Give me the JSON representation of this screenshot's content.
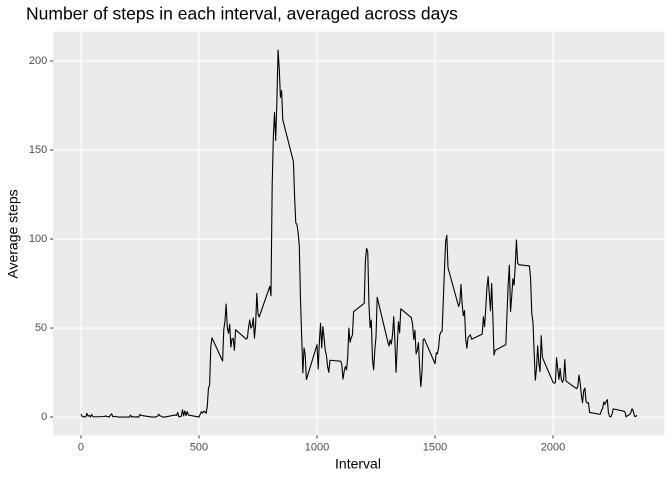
{
  "chart_data": {
    "type": "line",
    "title": "Number of steps in each interval, averaged across days",
    "x_label": "Interval",
    "y_label": "Average steps",
    "x": [
      0,
      5,
      10,
      15,
      20,
      25,
      30,
      35,
      40,
      45,
      50,
      55,
      100,
      105,
      110,
      115,
      120,
      125,
      130,
      135,
      140,
      145,
      150,
      155,
      200,
      205,
      210,
      215,
      220,
      225,
      230,
      235,
      240,
      245,
      250,
      255,
      300,
      305,
      310,
      315,
      320,
      325,
      330,
      335,
      340,
      345,
      350,
      355,
      400,
      405,
      410,
      415,
      420,
      425,
      430,
      435,
      440,
      445,
      450,
      455,
      500,
      505,
      510,
      515,
      520,
      525,
      530,
      535,
      540,
      545,
      550,
      555,
      600,
      605,
      610,
      615,
      620,
      625,
      630,
      635,
      640,
      645,
      650,
      655,
      700,
      705,
      710,
      715,
      720,
      725,
      730,
      735,
      740,
      745,
      750,
      755,
      800,
      805,
      810,
      815,
      820,
      825,
      830,
      835,
      840,
      845,
      850,
      855,
      900,
      905,
      910,
      915,
      920,
      925,
      930,
      935,
      940,
      945,
      950,
      955,
      1000,
      1005,
      1010,
      1015,
      1020,
      1025,
      1030,
      1035,
      1040,
      1045,
      1050,
      1055,
      1100,
      1105,
      1110,
      1115,
      1120,
      1125,
      1130,
      1135,
      1140,
      1145,
      1150,
      1155,
      1200,
      1205,
      1210,
      1215,
      1220,
      1225,
      1230,
      1235,
      1240,
      1245,
      1250,
      1255,
      1300,
      1305,
      1310,
      1315,
      1320,
      1325,
      1330,
      1335,
      1340,
      1345,
      1350,
      1355,
      1400,
      1405,
      1410,
      1415,
      1420,
      1425,
      1430,
      1435,
      1440,
      1445,
      1450,
      1455,
      1500,
      1505,
      1510,
      1515,
      1520,
      1525,
      1530,
      1535,
      1540,
      1545,
      1550,
      1555,
      1600,
      1605,
      1610,
      1615,
      1620,
      1625,
      1630,
      1635,
      1640,
      1645,
      1650,
      1655,
      1700,
      1705,
      1710,
      1715,
      1720,
      1725,
      1730,
      1735,
      1740,
      1745,
      1750,
      1755,
      1800,
      1805,
      1810,
      1815,
      1820,
      1825,
      1830,
      1835,
      1840,
      1845,
      1850,
      1855,
      1900,
      1905,
      1910,
      1915,
      1920,
      1925,
      1930,
      1935,
      1940,
      1945,
      1950,
      1955,
      2000,
      2005,
      2010,
      2015,
      2020,
      2025,
      2030,
      2035,
      2040,
      2045,
      2050,
      2055,
      2100,
      2105,
      2110,
      2115,
      2120,
      2125,
      2130,
      2135,
      2140,
      2145,
      2150,
      2155,
      2200,
      2205,
      2210,
      2215,
      2220,
      2225,
      2230,
      2235,
      2240,
      2245,
      2250,
      2255,
      2300,
      2305,
      2310,
      2315,
      2320,
      2325,
      2330,
      2335,
      2340,
      2345,
      2350,
      2355
    ],
    "series": [
      {
        "name": "Average steps",
        "color": "#000000",
        "values": [
          1.7,
          0.3,
          0.1,
          0.2,
          0.1,
          2.1,
          0.5,
          0.9,
          0,
          1.5,
          0.3,
          0.1,
          0.3,
          0.7,
          0.2,
          0.3,
          0,
          1.1,
          1.8,
          0.2,
          0.2,
          0.4,
          0.3,
          0,
          0,
          0,
          1.1,
          0,
          0.2,
          0.1,
          0,
          0.2,
          0,
          0,
          1.5,
          0.9,
          0,
          0,
          0,
          0,
          0.2,
          0.6,
          1.6,
          0.6,
          0.5,
          0.1,
          0,
          0,
          1.2,
          0.9,
          2.6,
          0,
          0.3,
          0.4,
          4.1,
          0.7,
          3.5,
          0.8,
          3.1,
          1.1,
          0,
          1.6,
          3,
          2.2,
          3.3,
          3,
          2.1,
          6,
          16,
          18.3,
          39.5,
          44.5,
          31.5,
          49.3,
          53.8,
          63.5,
          50,
          47.1,
          52.2,
          39.3,
          44,
          44.2,
          37.4,
          49,
          43.8,
          44.4,
          50.5,
          54.5,
          49.9,
          51,
          55.7,
          44.3,
          52.3,
          69.5,
          57.8,
          56.2,
          73.4,
          68.2,
          129.4,
          157.5,
          171.2,
          155.4,
          177.3,
          206.2,
          195.9,
          179.6,
          183.4,
          167,
          143.5,
          124,
          109.1,
          108.1,
          103.7,
          95.9,
          66.2,
          45.2,
          24.8,
          38.8,
          35,
          21.1,
          40.6,
          27,
          42.4,
          52.7,
          38.9,
          50.8,
          44.3,
          37.4,
          34.7,
          28.3,
          25.1,
          31.9,
          31.4,
          29.7,
          21.3,
          25.5,
          28.4,
          26.5,
          33.3,
          49.98,
          42,
          44.6,
          46,
          59.2,
          63.9,
          87.7,
          94.8,
          92.8,
          63.4,
          50.2,
          54.5,
          32.4,
          26.5,
          37.7,
          45.1,
          67.3,
          42.3,
          39.9,
          43.3,
          40.98,
          46.2,
          56.4,
          42.8,
          25.1,
          39.96,
          53.5,
          47.3,
          60.8,
          55.8,
          51.96,
          43.6,
          48.7,
          35.5,
          37.5,
          41.8,
          27.5,
          17.1,
          26.1,
          43.6,
          43.8,
          30,
          36.1,
          35.5,
          38.8,
          45.96,
          47.8,
          48.1,
          65.3,
          82.9,
          98.7,
          102.1,
          83.96,
          62.1,
          64.1,
          74.5,
          63.2,
          56.9,
          59.8,
          43.9,
          38.6,
          44.7,
          45.5,
          46.2,
          43.7,
          46.6,
          56.3,
          50.7,
          61.2,
          72.7,
          78.9,
          68.9,
          59.7,
          75.1,
          56.5,
          34.8,
          37.5,
          40.7,
          58,
          74.7,
          85.3,
          59.3,
          67.8,
          77.7,
          74.2,
          85.3,
          99.5,
          86.6,
          85.6,
          84.9,
          77.8,
          58,
          53.4,
          36.3,
          20.7,
          27.4,
          40,
          30.2,
          25.5,
          45.7,
          33.5,
          19.6,
          19,
          19.3,
          33.3,
          26.8,
          21.2,
          27.3,
          21.3,
          19.5,
          21.3,
          32.3,
          20.2,
          15.9,
          17.2,
          23.5,
          19.2,
          12.5,
          8,
          14.7,
          16.3,
          8.7,
          7.8,
          8.1,
          2.6,
          1.5,
          3.7,
          4.8,
          8.5,
          7.1,
          8.7,
          9.8,
          2.2,
          0.3,
          0.1,
          1.6,
          4.6,
          3.3,
          2.8,
          0,
          0.8,
          1,
          1.6,
          2.6,
          4.7,
          3.3,
          0.6,
          0.2,
          1.1
        ]
      }
    ],
    "xlim": [
      -117.75,
      2472.75
    ],
    "xticks": [
      0,
      500,
      1000,
      1500,
      2000
    ],
    "ylim": [
      -10.31,
      216.48
    ],
    "yticks": [
      0,
      50,
      100,
      150,
      200
    ],
    "grid": true
  }
}
